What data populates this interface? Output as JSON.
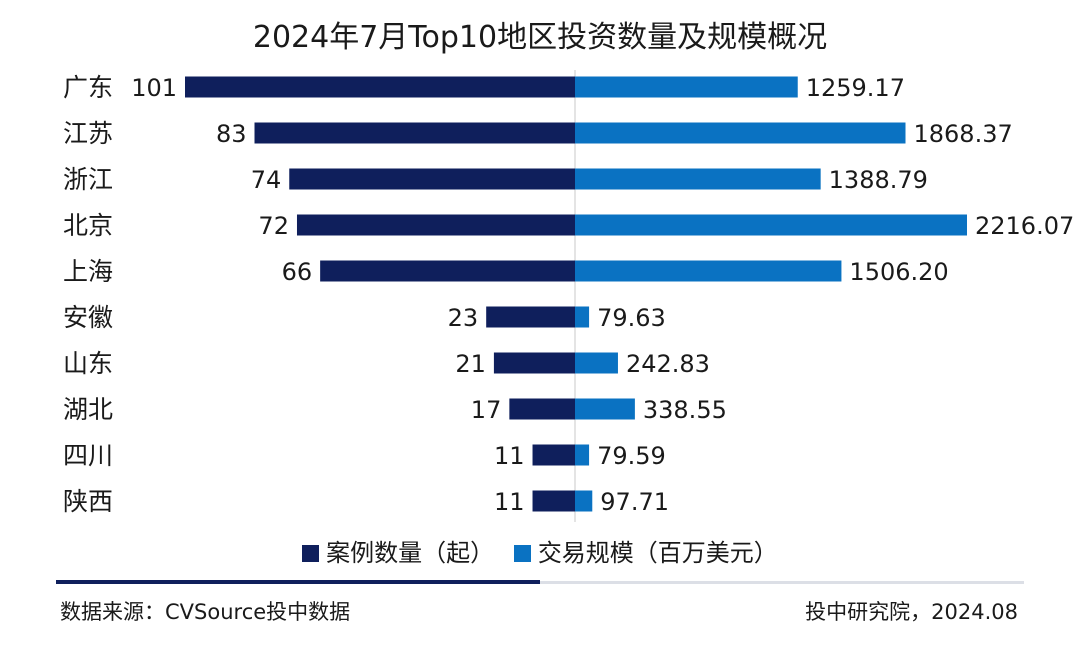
{
  "chart_data": {
    "type": "bar",
    "title": "2024年7月Top10地区投资数量及规模概况",
    "categories": [
      "广东",
      "江苏",
      "浙江",
      "北京",
      "上海",
      "安徽",
      "山东",
      "湖北",
      "四川",
      "陕西"
    ],
    "series": [
      {
        "name": "案例数量（起）",
        "color": "#0f1f5c",
        "values": [
          101,
          83,
          74,
          72,
          66,
          23,
          21,
          17,
          11,
          11
        ],
        "labels": [
          "101",
          "83",
          "74",
          "72",
          "66",
          "23",
          "21",
          "17",
          "11",
          "11"
        ]
      },
      {
        "name": "交易规模（百万美元）",
        "color": "#0a72c2",
        "values": [
          1259.17,
          1868.37,
          1388.79,
          2216.07,
          1506.2,
          79.63,
          242.83,
          338.55,
          79.59,
          97.71
        ],
        "labels": [
          "1259.17",
          "1868.37",
          "1388.79",
          "2216.07",
          "1506.20",
          "79.63",
          "242.83",
          "338.55",
          "79.59",
          "97.71"
        ]
      }
    ],
    "orientation": "horizontal-butterfly",
    "legend": "bottom"
  },
  "footer": {
    "source": "数据来源：CVSource投中数据",
    "credit": "投中研究院，2024.08"
  }
}
